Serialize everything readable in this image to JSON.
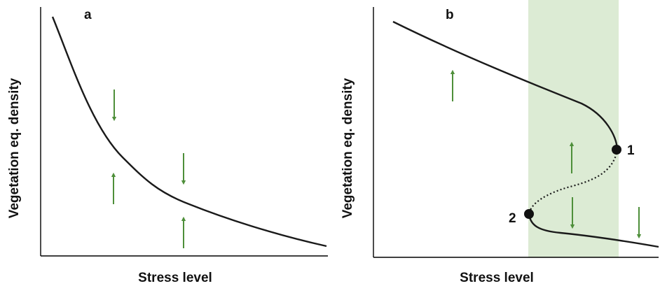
{
  "panels": {
    "a": {
      "letter": "a",
      "xlabel": "Stress level",
      "ylabel": "Vegetation eq. density"
    },
    "b": {
      "letter": "b",
      "xlabel": "Stress level",
      "ylabel": "Vegetation eq. density",
      "point1": "1",
      "point2": "2"
    }
  },
  "colors": {
    "curve": "#1a1a1a",
    "arrow": "#4e8f3a",
    "bistable_band": "#dcebd4"
  }
}
